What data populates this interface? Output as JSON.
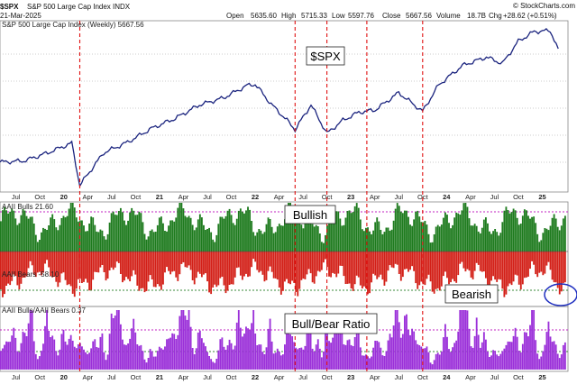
{
  "header": {
    "symbol": "$SPX",
    "name": "S&P 500 Large Cap Index INDX",
    "date": "21-Mar-2025",
    "open_label": "Open",
    "open": "5635.60",
    "high_label": "High",
    "high": "5715.33",
    "low_label": "Low",
    "low": "5597.76",
    "close_label": "Close",
    "close": "5667.56",
    "volume_label": "Volume",
    "volume": "18.7B",
    "change_label": "Chg",
    "change": "+28.62 (+0.51%)",
    "watermark": "© StockCharts.com"
  },
  "callouts": {
    "spx": "$SPX",
    "bullish": "Bullish",
    "bearish": "Bearish",
    "ratio": "Bull/Bear Ratio"
  },
  "colors": {
    "price_line": "#1a237e",
    "bulls": "#1e7b1e",
    "bears": "#d32018",
    "ratio": "#9b30d9",
    "marker_line": "#e01010",
    "highlight_circle": "#2030c0"
  },
  "chart_data": [
    {
      "type": "line",
      "title": "S&P 500 Large Cap Index (Weekly) 5667.56",
      "x_tick_labels": [
        "Jul",
        "Oct",
        "20",
        "Apr",
        "Jul",
        "Oct",
        "21",
        "Apr",
        "Jul",
        "Oct",
        "22",
        "Apr",
        "Jul",
        "Oct",
        "23",
        "Apr",
        "Jul",
        "Oct",
        "24",
        "Apr",
        "Jul",
        "Oct",
        "25"
      ],
      "x_range": [
        "2019-05",
        "2025-03"
      ],
      "series": [
        {
          "name": "$SPX",
          "points": [
            [
              "2019-05",
              2870
            ],
            [
              "2019-08",
              2900
            ],
            [
              "2019-11",
              3100
            ],
            [
              "2020-02",
              3340
            ],
            [
              "2020-03",
              2300
            ],
            [
              "2020-06",
              3100
            ],
            [
              "2020-09",
              3360
            ],
            [
              "2020-12",
              3700
            ],
            [
              "2021-03",
              3950
            ],
            [
              "2021-06",
              4280
            ],
            [
              "2021-09",
              4450
            ],
            [
              "2021-12",
              4760
            ],
            [
              "2022-01",
              4790
            ],
            [
              "2022-03",
              4300
            ],
            [
              "2022-05",
              3900
            ],
            [
              "2022-06",
              3670
            ],
            [
              "2022-08",
              4280
            ],
            [
              "2022-10",
              3580
            ],
            [
              "2022-12",
              3900
            ],
            [
              "2023-02",
              4100
            ],
            [
              "2023-04",
              4150
            ],
            [
              "2023-07",
              4580
            ],
            [
              "2023-10",
              4120
            ],
            [
              "2023-12",
              4770
            ],
            [
              "2024-03",
              5250
            ],
            [
              "2024-06",
              5460
            ],
            [
              "2024-08",
              5300
            ],
            [
              "2024-10",
              5850
            ],
            [
              "2024-12",
              6090
            ],
            [
              "2025-02",
              6110
            ],
            [
              "2025-03",
              5667.56
            ]
          ]
        }
      ],
      "annotations": [
        "$SPX"
      ]
    },
    {
      "type": "bar",
      "title": "AAII Bulls 21.60 / AAII Bears -58.10",
      "series": [
        {
          "name": "AAII Bulls",
          "last": 21.6,
          "range": [
            20,
            60
          ]
        },
        {
          "name": "AAII Bears",
          "last": -58.1,
          "range": [
            -60,
            -20
          ]
        }
      ],
      "annotations": [
        "Bullish",
        "Bearish"
      ]
    },
    {
      "type": "bar",
      "title": "AAII Bulls/AAII Bears 0.37",
      "series": [
        {
          "name": "AAII Bulls/AAII Bears",
          "last": 0.37,
          "range": [
            0.3,
            3.0
          ]
        }
      ],
      "annotations": [
        "Bull/Bear Ratio"
      ]
    }
  ]
}
